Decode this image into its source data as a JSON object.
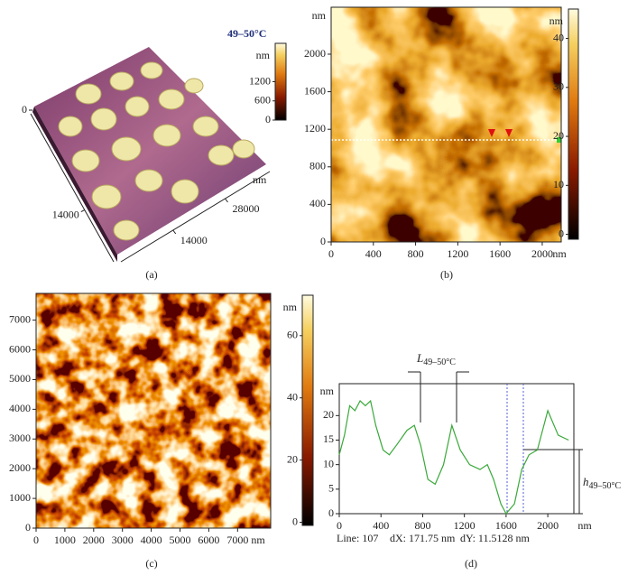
{
  "chart_data": [
    {
      "type": "surface",
      "caption": "(a)",
      "annotation": "49–50°C",
      "xlim": [
        0,
        40000
      ],
      "xticks": [
        14000,
        28000
      ],
      "xlabel": "nm",
      "ylim": [
        0,
        40000
      ],
      "yticks": [
        14000
      ],
      "zlim": [
        0,
        2400
      ],
      "zticks": [
        0
      ],
      "clabel": "nm",
      "clim": [
        0,
        2400
      ],
      "cticks": [
        0,
        600,
        1200
      ]
    },
    {
      "type": "heatmap",
      "caption": "(b)",
      "xlim": [
        0,
        2180
      ],
      "xticks": [
        0,
        400,
        800,
        1200,
        1600,
        2000
      ],
      "xlabel": "nm",
      "ylim": [
        0,
        2500
      ],
      "yticks": [
        0,
        400,
        800,
        1200,
        1600,
        2000
      ],
      "ylabel": "nm",
      "clabel": "nm",
      "clim": [
        -1,
        46
      ],
      "cticks": [
        0,
        10,
        20,
        30,
        40
      ]
    },
    {
      "type": "heatmap",
      "caption": "(c)",
      "xlim": [
        0,
        8150
      ],
      "xticks": [
        0,
        1000,
        2000,
        3000,
        4000,
        5000,
        6000,
        7000
      ],
      "xlabel": "nm",
      "ylim": [
        0,
        7900
      ],
      "yticks": [
        0,
        1000,
        2000,
        3000,
        4000,
        5000,
        6000,
        7000
      ],
      "clabel": "nm",
      "clim": [
        -1,
        73
      ],
      "cticks": [
        0,
        20,
        40,
        60
      ]
    },
    {
      "type": "line",
      "caption": "(d)",
      "xlim": [
        0,
        2250
      ],
      "xticks": [
        0,
        400,
        800,
        1200,
        1600,
        2000
      ],
      "xlabel": "nm",
      "ylim": [
        0,
        26.5
      ],
      "yticks": [
        0,
        5,
        10,
        15,
        20
      ],
      "ylabel": "nm",
      "x": [
        0,
        50,
        100,
        150,
        200,
        250,
        300,
        350,
        420,
        480,
        550,
        650,
        720,
        780,
        850,
        920,
        1000,
        1080,
        1160,
        1250,
        1350,
        1420,
        1480,
        1550,
        1600,
        1680,
        1750,
        1820,
        1900,
        2000,
        2100,
        2200
      ],
      "series": [
        {
          "color": "#3aa83a",
          "values": [
            12,
            16,
            22,
            21,
            23,
            22,
            23,
            18,
            13,
            12,
            14,
            17,
            18,
            14,
            7,
            6,
            10,
            18,
            13,
            10,
            9,
            10,
            7,
            2,
            0,
            2,
            9,
            12,
            13,
            21,
            16,
            15
          ]
        }
      ],
      "annotations": [
        {
          "text": "L",
          "sub": "49–50°C"
        },
        {
          "text": "h",
          "sub": "49–50°C"
        }
      ],
      "footer": [
        "Line: 107",
        "dX: 171.75 nm",
        "dY: 11.5128 nm"
      ]
    }
  ]
}
